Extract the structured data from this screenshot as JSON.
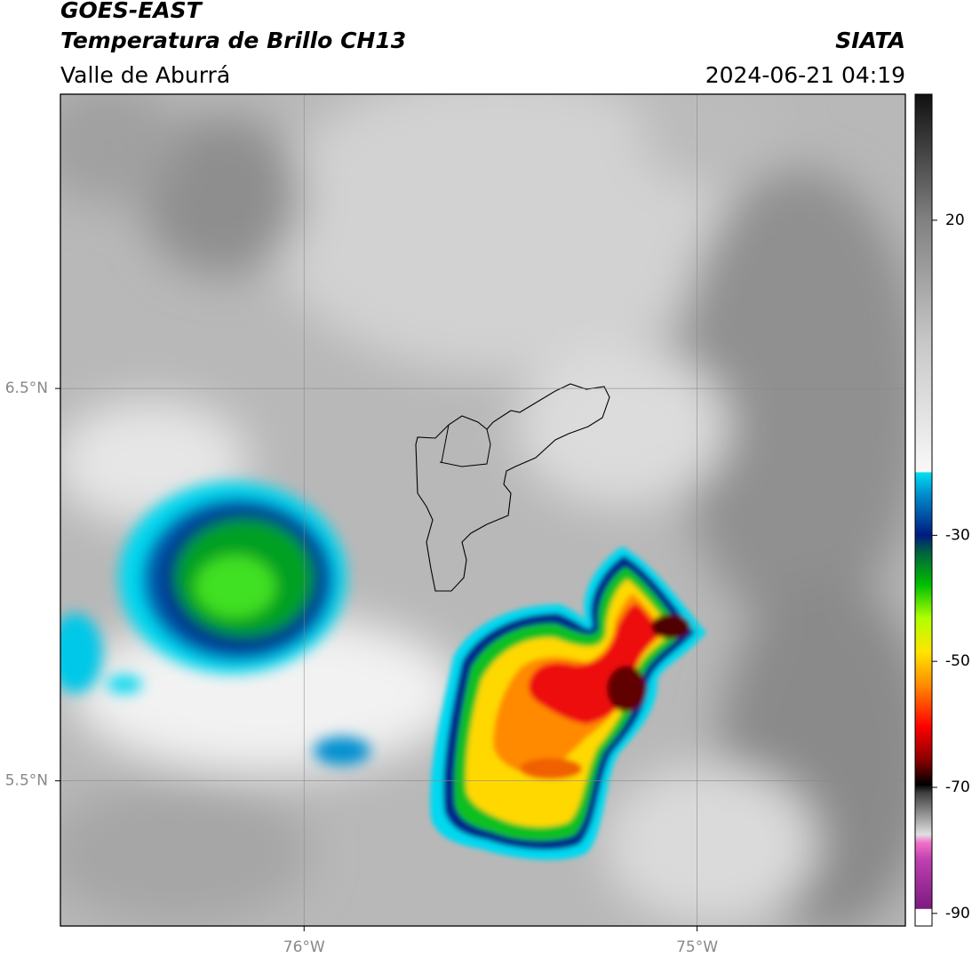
{
  "header": {
    "title": "GOES-EAST",
    "subtitle": "Temperatura de Brillo CH13",
    "region": "Valle de Aburrá",
    "source": "SIATA",
    "datetime": "2024-06-21 04:19"
  },
  "map": {
    "xlim": [
      -76.62,
      -74.47
    ],
    "ylim": [
      5.13,
      7.25
    ],
    "xticks": [
      {
        "value": -76,
        "label": "76°W"
      },
      {
        "value": -75,
        "label": "75°W"
      }
    ],
    "yticks": [
      {
        "value": 6.5,
        "label": "6.5°N"
      },
      {
        "value": 5.5,
        "label": "5.5°N"
      }
    ]
  },
  "colorbar": {
    "lim": [
      -92,
      40
    ],
    "ticks": [
      20,
      -30,
      -50,
      -70,
      -90
    ]
  }
}
